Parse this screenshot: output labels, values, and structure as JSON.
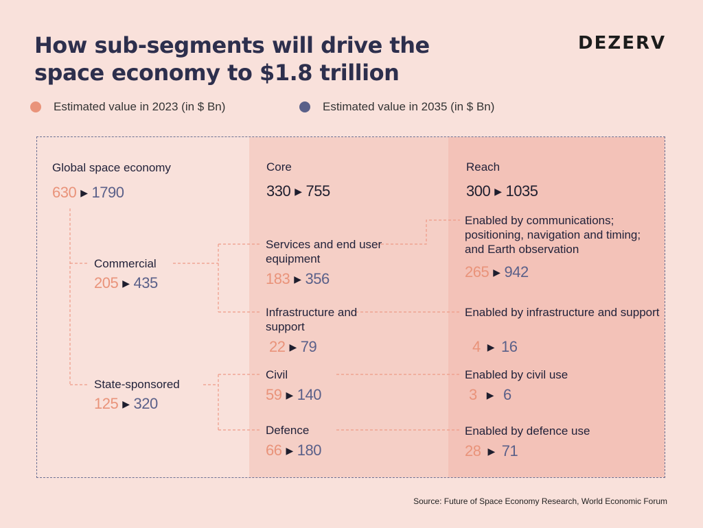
{
  "title": "How sub-segments will drive the space economy to $1.8 trillion",
  "brand": "DEZERV",
  "legend": [
    {
      "label": "Estimated value in 2023 (in $ Bn)",
      "color": "#e9937a"
    },
    {
      "label": "Estimated value in 2035 (in $ Bn)",
      "color": "#5a6089"
    }
  ],
  "nodes": {
    "global": {
      "label": "Global space economy",
      "v2023": "630",
      "v2035": "1790"
    },
    "core": {
      "label": "Core",
      "v2023": "330",
      "v2035": "755"
    },
    "reach": {
      "label": "Reach",
      "v2023": "300",
      "v2035": "1035"
    },
    "commercial": {
      "label": "Commercial",
      "v2023": "205",
      "v2035": "435"
    },
    "state": {
      "label": "State-sponsored",
      "v2023": "125",
      "v2035": "320"
    },
    "services": {
      "label": "Services and end user equipment",
      "v2023": "183",
      "v2035": "356"
    },
    "infra": {
      "label": "Infrastructure and support",
      "v2023": "22",
      "v2035": "79"
    },
    "civil": {
      "label": "Civil",
      "v2023": "59",
      "v2035": "140"
    },
    "defence": {
      "label": "Defence",
      "v2023": "66",
      "v2035": "180"
    },
    "enabled_comm": {
      "label": "Enabled by communications; positioning, navigation and timing; and Earth observation",
      "v2023": "265",
      "v2035": "942"
    },
    "enabled_infra": {
      "label": "Enabled by infrastructure and support",
      "v2023": "4",
      "v2035": "16"
    },
    "enabled_civil": {
      "label": "Enabled by civil use",
      "v2023": "3",
      "v2035": "6"
    },
    "enabled_defence": {
      "label": "Enabled by defence use",
      "v2023": "28",
      "v2035": "71"
    }
  },
  "arrow_glyph": "▶",
  "source": "Source: Future of Space Economy Research, World Economic Forum"
}
